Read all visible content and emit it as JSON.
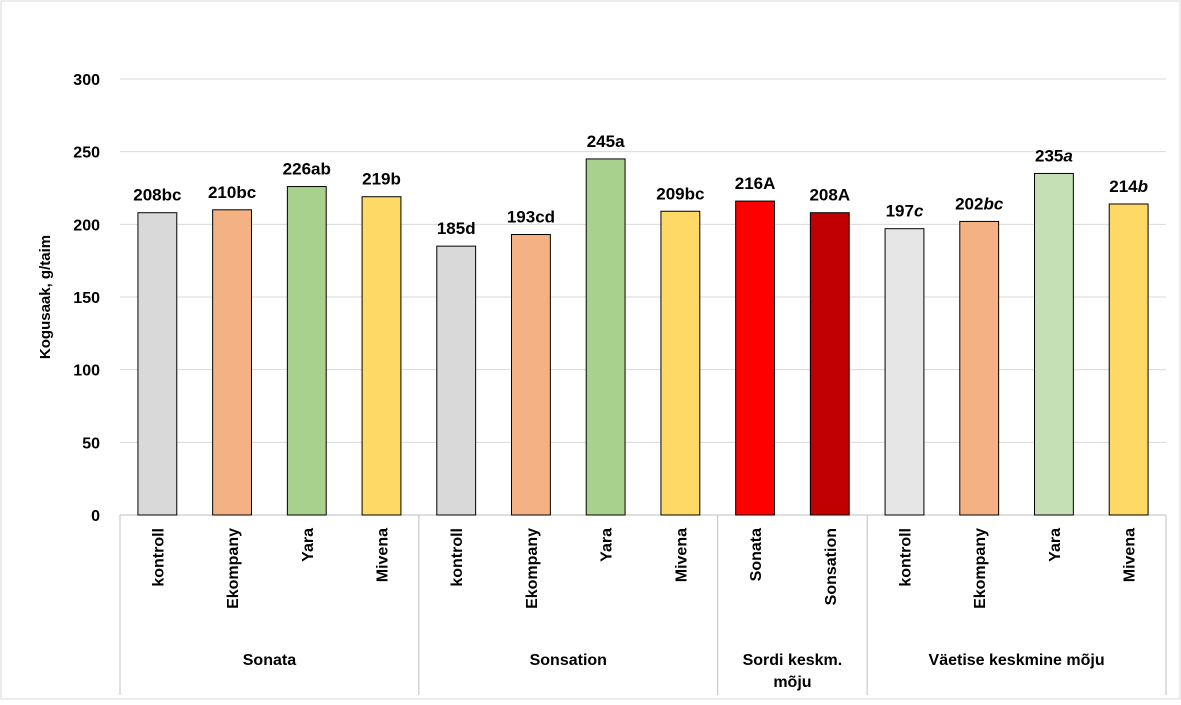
{
  "chart_data": {
    "type": "bar",
    "ylabel": "Kogusaak, g/taim",
    "ylim": [
      0,
      300
    ],
    "yticks": [
      0,
      50,
      100,
      150,
      200,
      250,
      300
    ],
    "grid": true,
    "groups": [
      {
        "name": "Sonata",
        "bars": [
          {
            "category": "kontroll",
            "value": 208,
            "label_num": "208",
            "label_suffix": "bc",
            "suffix_italic": false,
            "color": "#d9d9d9"
          },
          {
            "category": "Ekompany",
            "value": 210,
            "label_num": "210",
            "label_suffix": "bc",
            "suffix_italic": false,
            "color": "#f4b183"
          },
          {
            "category": "Yara",
            "value": 226,
            "label_num": "226",
            "label_suffix": "ab",
            "suffix_italic": false,
            "color": "#a9d18e"
          },
          {
            "category": "Mivena",
            "value": 219,
            "label_num": "219",
            "label_suffix": "b",
            "suffix_italic": false,
            "color": "#ffd966"
          }
        ]
      },
      {
        "name": "Sonsation",
        "bars": [
          {
            "category": "kontroll",
            "value": 185,
            "label_num": "185",
            "label_suffix": "d",
            "suffix_italic": false,
            "color": "#d9d9d9"
          },
          {
            "category": "Ekompany",
            "value": 193,
            "label_num": "193",
            "label_suffix": "cd",
            "suffix_italic": false,
            "color": "#f4b183"
          },
          {
            "category": "Yara",
            "value": 245,
            "label_num": "245",
            "label_suffix": "a",
            "suffix_italic": false,
            "color": "#a9d18e"
          },
          {
            "category": "Mivena",
            "value": 209,
            "label_num": "209",
            "label_suffix": "bc",
            "suffix_italic": false,
            "color": "#ffd966"
          }
        ]
      },
      {
        "name": "Sordi keskm. mõju",
        "name_lines": [
          "Sordi keskm.",
          "mõju"
        ],
        "bars": [
          {
            "category": "Sonata",
            "value": 216,
            "label_num": "216",
            "label_suffix": "A",
            "suffix_italic": false,
            "color": "#ff0000"
          },
          {
            "category": "Sonsation",
            "value": 208,
            "label_num": "208",
            "label_suffix": "A",
            "suffix_italic": false,
            "color": "#c00000"
          }
        ]
      },
      {
        "name": "Väetise keskmine mõju",
        "bars": [
          {
            "category": "kontroll",
            "value": 197,
            "label_num": "197",
            "label_suffix": "c",
            "suffix_italic": true,
            "color": "#e7e6e6"
          },
          {
            "category": "Ekompany",
            "value": 202,
            "label_num": "202",
            "label_suffix": "bc",
            "suffix_italic": true,
            "color": "#f4b183"
          },
          {
            "category": "Yara",
            "value": 235,
            "label_num": "235",
            "label_suffix": "a",
            "suffix_italic": true,
            "color": "#c5e0b4"
          },
          {
            "category": "Mivena",
            "value": 214,
            "label_num": "214",
            "label_suffix": "b",
            "suffix_italic": true,
            "color": "#ffd966"
          }
        ]
      }
    ]
  }
}
